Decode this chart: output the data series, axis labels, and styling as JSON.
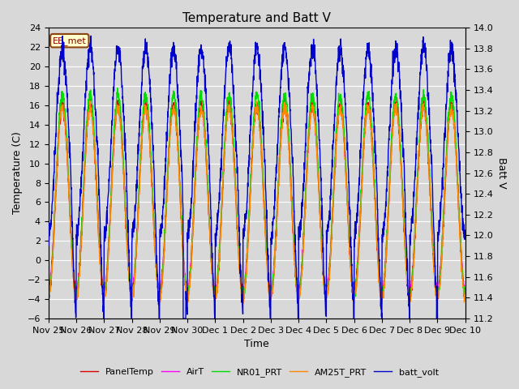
{
  "title": "Temperature and Batt V",
  "xlabel": "Time",
  "ylabel_left": "Temperature (C)",
  "ylabel_right": "Batt V",
  "annotation": "EE_met",
  "ylim_left": [
    -6,
    24
  ],
  "ylim_right": [
    11.2,
    14.0
  ],
  "yticks_left": [
    -6,
    -4,
    -2,
    0,
    2,
    4,
    6,
    8,
    10,
    12,
    14,
    16,
    18,
    20,
    22,
    24
  ],
  "yticks_right": [
    11.2,
    11.4,
    11.6,
    11.8,
    12.0,
    12.2,
    12.4,
    12.6,
    12.8,
    13.0,
    13.2,
    13.4,
    13.6,
    13.8,
    14.0
  ],
  "background_color": "#d8d8d8",
  "plot_bg_color": "#d8d8d8",
  "grid_color": "#ffffff",
  "series": [
    {
      "name": "PanelTemp",
      "color": "#dd0000",
      "lw": 1.0
    },
    {
      "name": "AirT",
      "color": "#ff00ff",
      "lw": 1.0
    },
    {
      "name": "NR01_PRT",
      "color": "#00dd00",
      "lw": 1.0
    },
    {
      "name": "AM25T_PRT",
      "color": "#ff8800",
      "lw": 1.0
    },
    {
      "name": "batt_volt",
      "color": "#0000cc",
      "lw": 1.0
    }
  ],
  "xtick_labels": [
    "Nov 25",
    "Nov 26",
    "Nov 27",
    "Nov 28",
    "Nov 29",
    "Nov 30",
    "Dec 1",
    "Dec 2",
    "Dec 3",
    "Dec 4",
    "Dec 5",
    "Dec 6",
    "Dec 7",
    "Dec 8",
    "Dec 9",
    "Dec 10"
  ],
  "xtick_positions": [
    0,
    1,
    2,
    3,
    4,
    5,
    6,
    7,
    8,
    9,
    10,
    11,
    12,
    13,
    14,
    15
  ]
}
